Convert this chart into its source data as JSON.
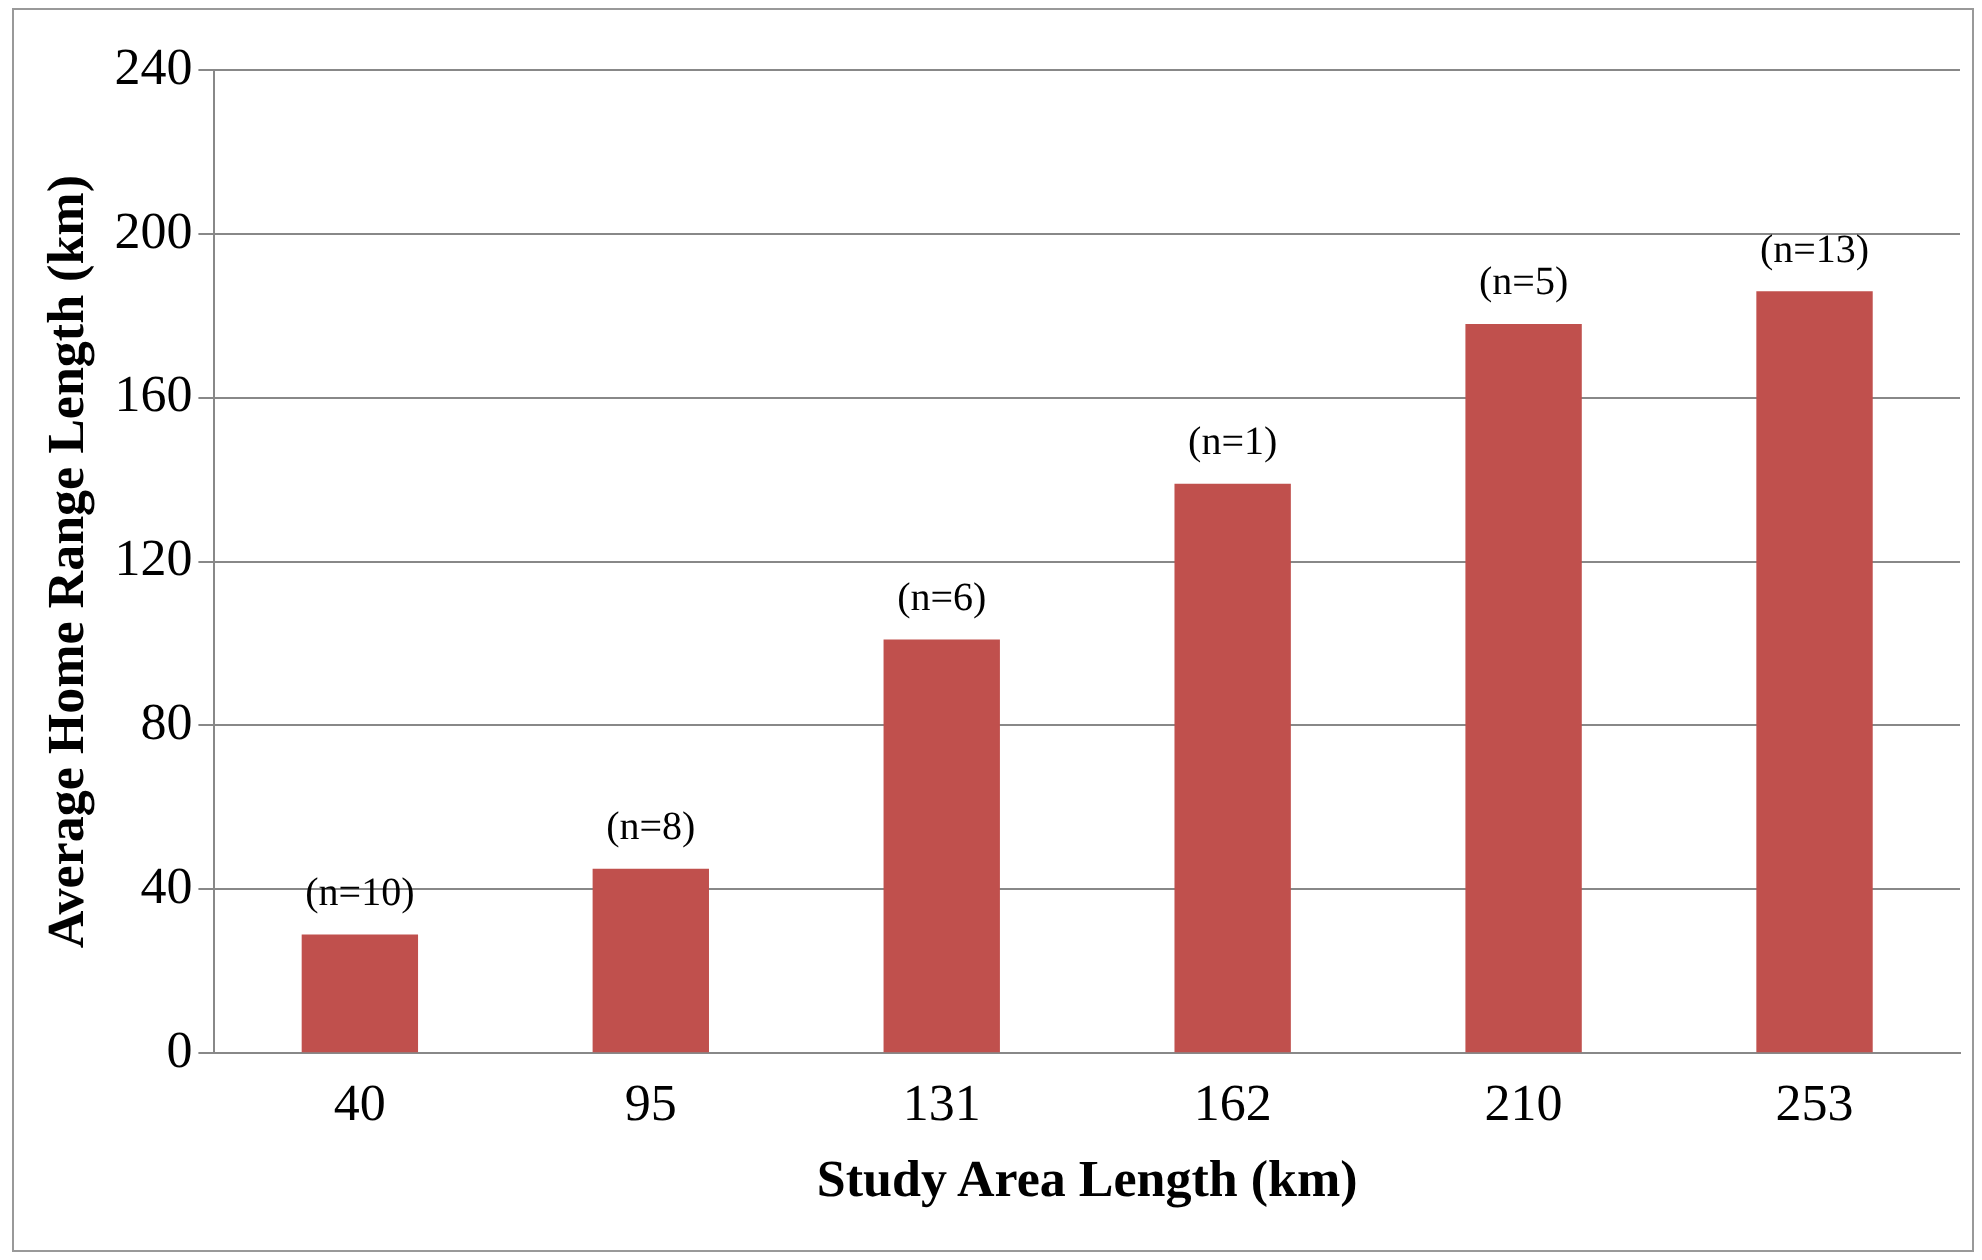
{
  "chart_data": {
    "type": "bar",
    "xlabel": "Study Area Length (km)",
    "ylabel": "Average Home Range Length (km)",
    "categories": [
      "40",
      "95",
      "131",
      "162",
      "210",
      "253"
    ],
    "values": [
      29,
      45,
      101,
      139,
      178,
      186
    ],
    "color": "#c0504d",
    "ylim": [
      0,
      240
    ],
    "yticks": [
      0,
      40,
      80,
      120,
      160,
      200,
      240
    ],
    "grid": "y",
    "annotations": [
      {
        "text": "(n=10)",
        "x": "40",
        "y": 29
      },
      {
        "text": "(n=8)",
        "x": "95",
        "y": 45
      },
      {
        "text": "(n=6)",
        "x": "131",
        "y": 101
      },
      {
        "text": "(n=1)",
        "x": "162",
        "y": 139
      },
      {
        "text": "(n=5)",
        "x": "210",
        "y": 178
      },
      {
        "text": "(n=13)",
        "x": "253",
        "y": 186
      }
    ]
  }
}
